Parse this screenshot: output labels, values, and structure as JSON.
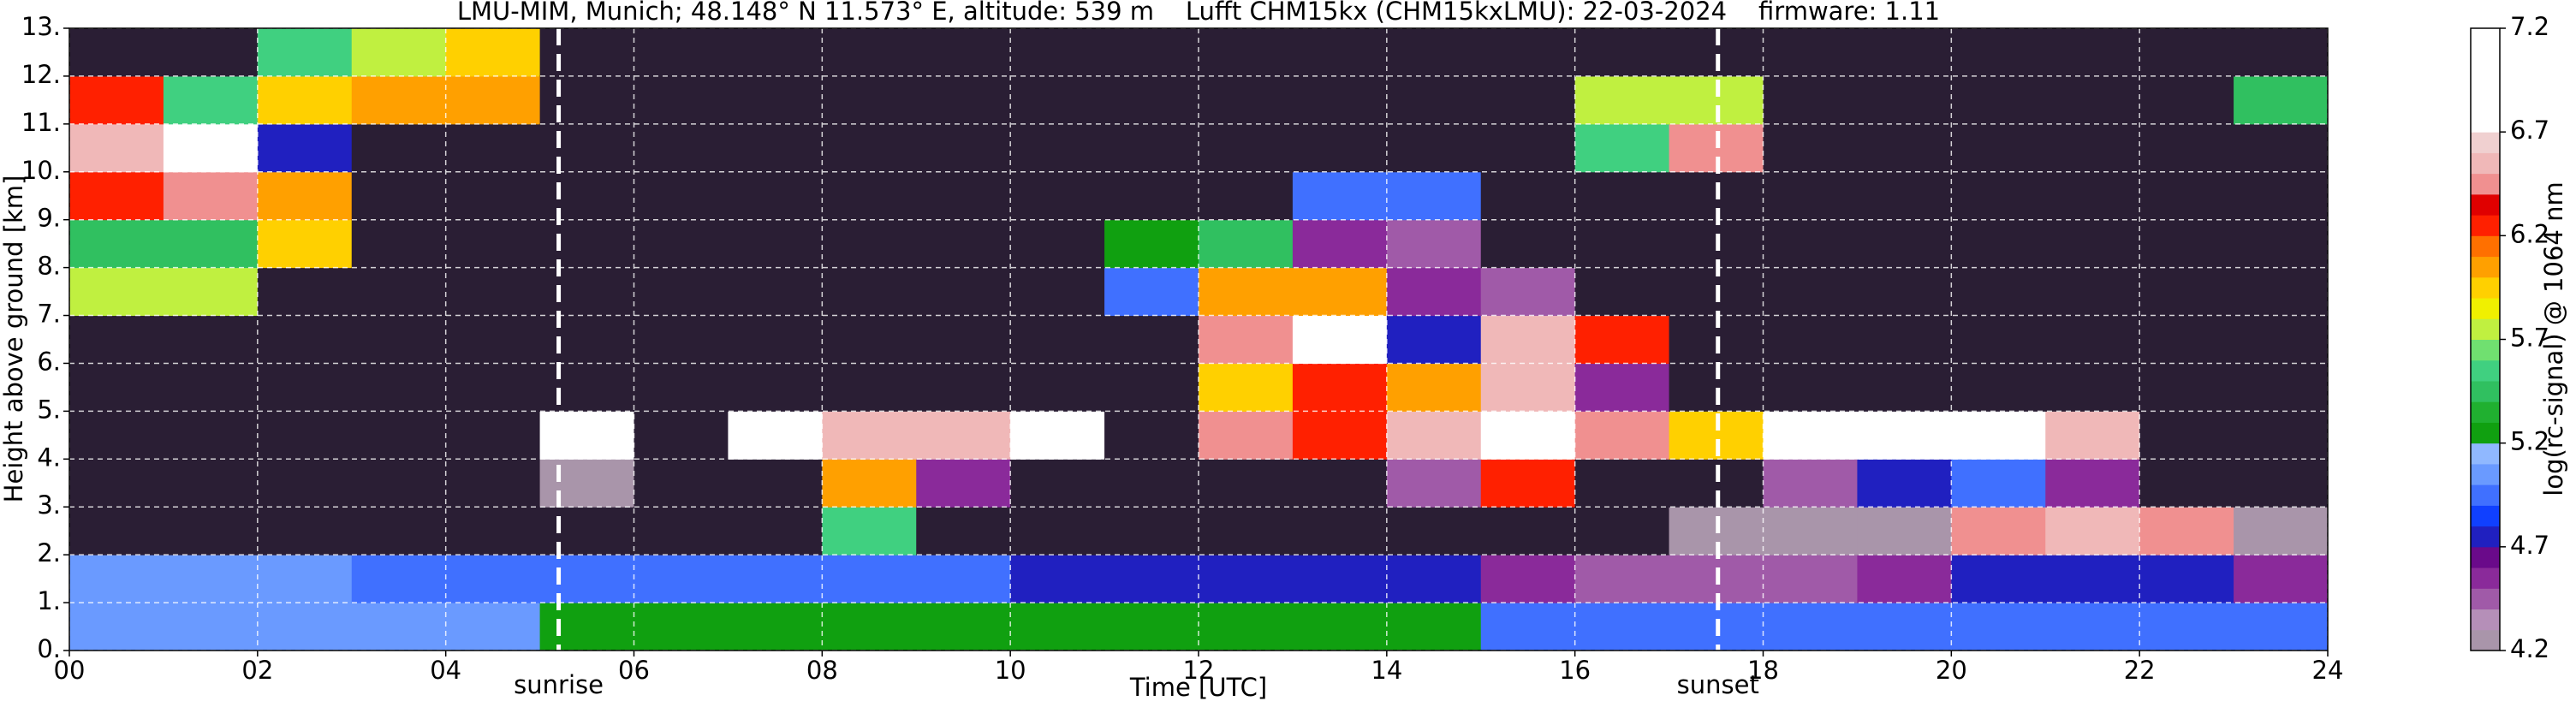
{
  "chart_data": {
    "type": "heatmap",
    "title": "LMU-MIM, Munich; 48.148° N 11.573° E, altitude: 539 m    Lufft CHM15kx (CHM15kxLMU): 22-03-2024    firmware: 1.11",
    "x_label": "Time [UTC]",
    "y_label": "Height above ground [km]",
    "colorbar_label": "log(rc-signal) @ 1064 nm",
    "x": [
      0,
      1,
      2,
      3,
      4,
      5,
      6,
      7,
      8,
      9,
      10,
      11,
      12,
      13,
      14,
      15,
      16,
      17,
      18,
      19,
      20,
      21,
      22,
      23
    ],
    "y": [
      0,
      1,
      2,
      3,
      4,
      5,
      6,
      7,
      8,
      9,
      10,
      11,
      12
    ],
    "z": [
      [
        5.1,
        5.1,
        5.1,
        5.1,
        5.1,
        5.2,
        5.3,
        5.3,
        5.3,
        5.3,
        5.3,
        5.3,
        5.3,
        5.2,
        5.2,
        5.0,
        4.9,
        4.9,
        4.9,
        4.9,
        4.9,
        4.9,
        4.9,
        4.9
      ],
      [
        5.1,
        5.1,
        5.1,
        5.0,
        5.0,
        4.9,
        4.9,
        4.9,
        4.9,
        4.9,
        4.8,
        4.8,
        4.8,
        4.7,
        4.7,
        4.6,
        4.5,
        4.5,
        4.5,
        4.6,
        4.7,
        4.8,
        4.8,
        4.6
      ],
      [
        4.1,
        4.1,
        4.1,
        4.1,
        4.1,
        4.1,
        4.1,
        4.1,
        5.6,
        4.1,
        4.1,
        4.1,
        4.1,
        4.1,
        4.1,
        4.1,
        4.1,
        4.3,
        4.3,
        4.3,
        6.4,
        6.5,
        6.4,
        4.3
      ],
      [
        4.1,
        4.1,
        4.1,
        4.1,
        4.1,
        4.2,
        4.1,
        4.1,
        6.1,
        4.6,
        4.1,
        4.1,
        4.1,
        4.1,
        4.5,
        6.2,
        4.1,
        4.1,
        4.5,
        4.8,
        4.9,
        4.6,
        4.1,
        4.1
      ],
      [
        4.1,
        4.1,
        4.1,
        4.1,
        4.1,
        6.9,
        4.1,
        6.8,
        6.6,
        6.5,
        6.8,
        4.1,
        6.4,
        6.3,
        6.5,
        6.7,
        6.4,
        5.9,
        6.7,
        6.9,
        6.8,
        6.6,
        4.1,
        4.1
      ],
      [
        4.1,
        4.1,
        4.1,
        4.1,
        4.1,
        4.1,
        4.1,
        4.1,
        4.1,
        4.1,
        4.1,
        4.1,
        5.9,
        6.3,
        6.0,
        6.6,
        4.6,
        4.1,
        4.1,
        4.1,
        4.1,
        4.1,
        4.1,
        4.1
      ],
      [
        4.1,
        4.1,
        4.1,
        4.1,
        4.1,
        4.1,
        4.1,
        4.1,
        4.1,
        4.1,
        4.1,
        4.1,
        6.4,
        6.7,
        4.8,
        6.5,
        6.2,
        4.1,
        4.1,
        4.1,
        4.1,
        4.1,
        4.1,
        4.1
      ],
      [
        5.8,
        5.7,
        4.1,
        4.1,
        4.1,
        4.1,
        4.1,
        4.1,
        4.1,
        4.1,
        4.1,
        5.0,
        6.1,
        6.0,
        4.6,
        4.4,
        4.1,
        4.1,
        4.1,
        4.1,
        4.1,
        4.1,
        4.1,
        4.1
      ],
      [
        5.5,
        5.5,
        5.9,
        4.1,
        4.1,
        4.1,
        4.1,
        4.1,
        4.1,
        4.1,
        4.1,
        5.2,
        5.5,
        4.6,
        4.4,
        4.1,
        4.1,
        4.1,
        4.1,
        4.1,
        4.1,
        4.1,
        4.1,
        4.1
      ],
      [
        6.2,
        6.4,
        6.0,
        4.1,
        4.1,
        4.1,
        4.1,
        4.1,
        4.1,
        4.1,
        4.1,
        4.1,
        4.1,
        5.0,
        4.9,
        4.1,
        4.1,
        4.1,
        4.1,
        4.1,
        4.1,
        4.1,
        4.1,
        4.1
      ],
      [
        6.6,
        6.8,
        4.8,
        4.1,
        4.1,
        4.1,
        4.1,
        4.1,
        4.1,
        4.1,
        4.1,
        4.1,
        4.1,
        4.1,
        4.1,
        4.1,
        5.6,
        6.4,
        4.1,
        4.1,
        4.1,
        4.1,
        4.1,
        4.1
      ],
      [
        6.3,
        5.6,
        5.9,
        6.1,
        6.0,
        4.1,
        4.1,
        4.1,
        4.1,
        4.1,
        4.1,
        4.1,
        4.1,
        4.1,
        4.1,
        4.1,
        5.8,
        5.8,
        4.1,
        4.1,
        4.1,
        4.1,
        4.1,
        5.4
      ],
      [
        4.1,
        4.1,
        5.6,
        5.7,
        5.9,
        4.1,
        4.1,
        4.1,
        4.1,
        4.1,
        4.1,
        4.1,
        4.1,
        4.1,
        4.1,
        4.1,
        4.1,
        4.1,
        4.1,
        4.1,
        4.1,
        4.1,
        4.1,
        4.1
      ]
    ],
    "xlim": [
      0,
      24
    ],
    "xticks": [
      {
        "value": 0,
        "label": "00"
      },
      {
        "value": 2,
        "label": "02"
      },
      {
        "value": 4,
        "label": "04"
      },
      {
        "value": 6,
        "label": "06"
      },
      {
        "value": 8,
        "label": "08"
      },
      {
        "value": 10,
        "label": "10"
      },
      {
        "value": 12,
        "label": "12"
      },
      {
        "value": 14,
        "label": "14"
      },
      {
        "value": 16,
        "label": "16"
      },
      {
        "value": 18,
        "label": "18"
      },
      {
        "value": 20,
        "label": "20"
      },
      {
        "value": 22,
        "label": "22"
      },
      {
        "value": 24,
        "label": "24"
      }
    ],
    "ylim": [
      0,
      13
    ],
    "yticks": [
      {
        "value": 0,
        "label": "0."
      },
      {
        "value": 1,
        "label": "1."
      },
      {
        "value": 2,
        "label": "2."
      },
      {
        "value": 3,
        "label": "3."
      },
      {
        "value": 4,
        "label": "4."
      },
      {
        "value": 5,
        "label": "5."
      },
      {
        "value": 6,
        "label": "6."
      },
      {
        "value": 7,
        "label": "7."
      },
      {
        "value": 8,
        "label": "8."
      },
      {
        "value": 9,
        "label": "9."
      },
      {
        "value": 10,
        "label": "10."
      },
      {
        "value": 11,
        "label": "11."
      },
      {
        "value": 12,
        "label": "12."
      },
      {
        "value": 13,
        "label": "13."
      }
    ],
    "clim": [
      4.2,
      7.2
    ],
    "cticks": [
      4.2,
      4.7,
      5.2,
      5.7,
      6.2,
      6.7,
      7.2
    ],
    "colors": [
      "#a995aa",
      "#b58fb8",
      "#a05aa8",
      "#8a2a9a",
      "#6a0a8a",
      "#2020c0",
      "#1040ff",
      "#4070ff",
      "#6a9aff",
      "#90b8ff",
      "#10a010",
      "#20b030",
      "#30c060",
      "#40d080",
      "#70e070",
      "#c0f040",
      "#f0f000",
      "#ffd000",
      "#ffa000",
      "#ff7000",
      "#ff2000",
      "#e00000",
      "#f09090",
      "#f0b8b8",
      "#f0d0d0",
      "#ffffff",
      "#ffffff",
      "#ffffff",
      "#ffffff",
      "#ffffff"
    ],
    "under_color": "#2a1e34",
    "grid": true,
    "vlines": [
      {
        "x": 5.2,
        "label": "sunrise"
      },
      {
        "x": 17.52,
        "label": "sunset"
      }
    ]
  }
}
